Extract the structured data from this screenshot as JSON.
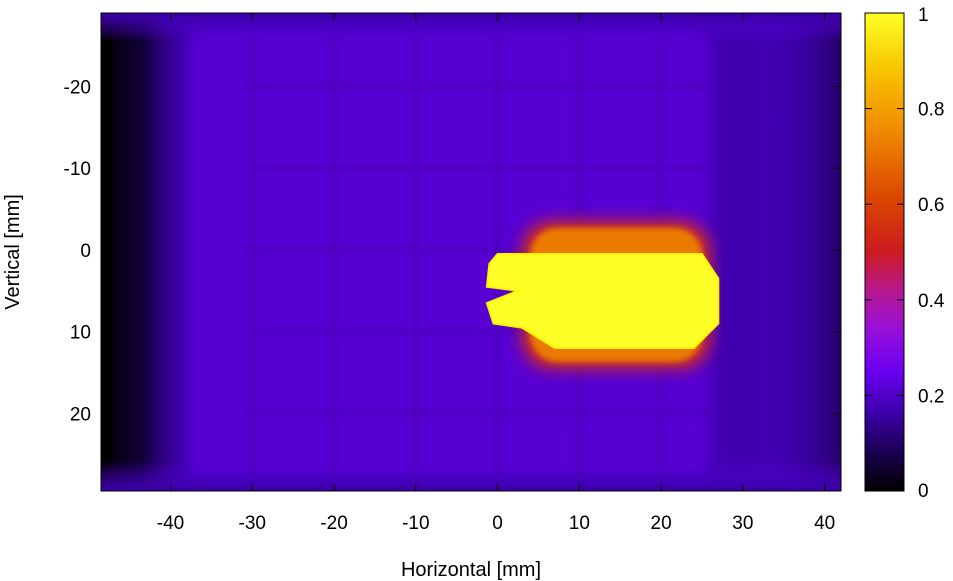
{
  "chart_data": {
    "type": "heatmap",
    "xlabel": "Horizontal [mm]",
    "ylabel": "Vertical [mm]",
    "xlim": [
      -48.5,
      42
    ],
    "ylim": [
      -29,
      29.5
    ],
    "y_inverted": true,
    "x_ticks": [
      -40,
      -30,
      -20,
      -10,
      0,
      10,
      20,
      30,
      40
    ],
    "y_ticks": [
      -20,
      -10,
      0,
      10,
      20
    ],
    "colorbar": {
      "range": [
        0,
        1
      ],
      "ticks": [
        0,
        0.2,
        0.4,
        0.6,
        0.8,
        1
      ],
      "tick_labels": [
        "0",
        "0.2",
        "0.4",
        "0.6",
        "0.8",
        "1"
      ],
      "palette": [
        "#000000",
        "#2a007a",
        "#5a00e0",
        "#9b1fc8",
        "#c8102e",
        "#e85a00",
        "#f4a300",
        "#ffe800",
        "#ffff30"
      ]
    },
    "background_level": 0.17,
    "hot_spot": {
      "x_range": [
        -1,
        27
      ],
      "y_range": [
        0.5,
        12
      ],
      "level": 1.0
    },
    "hot_spot_halo": {
      "x_range": [
        3,
        26
      ],
      "y_range": [
        -3.5,
        14.5
      ],
      "level": 0.6
    },
    "dark_edge_x": -48
  }
}
